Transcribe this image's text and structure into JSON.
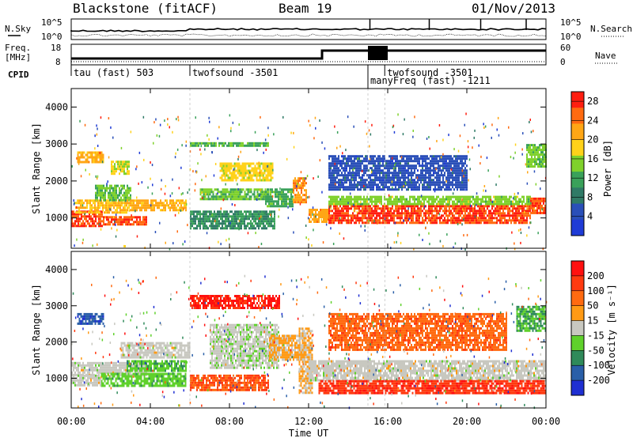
{
  "header": {
    "station": "Blackstone (fitACF)",
    "beam": "Beam 19",
    "date": "01/Nov/2013"
  },
  "summary_panels": {
    "nsky_label": "N.Sky",
    "nsearch_label": "N.Search",
    "nsky_ticks": [
      "10^5",
      "10^0"
    ],
    "freq_label_line1": "Freq.",
    "freq_label_line2": "[MHz]",
    "freq_ticks": [
      "18",
      "8"
    ],
    "nave_label": "Nave",
    "nave_ticks": [
      "60",
      "0"
    ],
    "cpid_label": "CPID",
    "cpid_segments": [
      {
        "label": "tau (fast) 503",
        "start": 0.0,
        "row": 0
      },
      {
        "label": "twofsound -3501",
        "start": 6.0,
        "row": 0
      },
      {
        "label": "manyFreq (fast) -1211",
        "start": 15.0,
        "row": 1
      },
      {
        "label": "twofsound -3501",
        "start": 15.85,
        "row": 0
      }
    ]
  },
  "chart_data": [
    {
      "type": "heatmap",
      "title": "",
      "xlabel": "",
      "ylabel": "Slant Range [km]",
      "xlim": [
        0,
        24
      ],
      "ylim": [
        180,
        4500
      ],
      "yticks": [
        1000,
        2000,
        3000,
        4000
      ],
      "colorbar": {
        "label": "Power [dB]",
        "ticks": [
          4,
          8,
          12,
          16,
          20,
          24,
          28
        ],
        "range": [
          0,
          30
        ],
        "colors": [
          "#1f3bd6",
          "#2a4fb8",
          "#2f7a66",
          "#3aa15a",
          "#7fd12b",
          "#ffd21a",
          "#ffa615",
          "#ff6a10",
          "#ff1e10"
        ]
      },
      "regions": [
        {
          "t0": 0.0,
          "t1": 1.6,
          "r0": 800,
          "r1": 1200,
          "level": 27
        },
        {
          "t0": 1.6,
          "t1": 3.8,
          "r0": 800,
          "r1": 1050,
          "level": 26
        },
        {
          "t0": 0.2,
          "t1": 2.8,
          "r0": 1150,
          "r1": 1500,
          "level": 20
        },
        {
          "t0": 1.2,
          "t1": 3.0,
          "r0": 1500,
          "r1": 1900,
          "level": 14
        },
        {
          "t0": 2.8,
          "t1": 5.8,
          "r0": 1200,
          "r1": 1500,
          "level": 21
        },
        {
          "t0": 0.3,
          "t1": 1.6,
          "r0": 2500,
          "r1": 2800,
          "level": 21
        },
        {
          "t0": 2.0,
          "t1": 2.9,
          "r0": 2200,
          "r1": 2550,
          "level": 17
        },
        {
          "t0": 6.0,
          "t1": 10.3,
          "r0": 700,
          "r1": 1200,
          "level": 10
        },
        {
          "t0": 6.5,
          "t1": 10.0,
          "r0": 1500,
          "r1": 1800,
          "level": 14
        },
        {
          "t0": 7.5,
          "t1": 10.2,
          "r0": 2000,
          "r1": 2500,
          "level": 18
        },
        {
          "t0": 6.0,
          "t1": 10.0,
          "r0": 2950,
          "r1": 3050,
          "level": 13
        },
        {
          "t0": 9.8,
          "t1": 11.2,
          "r0": 1300,
          "r1": 1800,
          "level": 12
        },
        {
          "t0": 11.2,
          "t1": 11.9,
          "r0": 1400,
          "r1": 2100,
          "level": 23
        },
        {
          "t0": 12.0,
          "t1": 13.0,
          "r0": 900,
          "r1": 1250,
          "level": 22
        },
        {
          "t0": 13.0,
          "t1": 23.2,
          "r0": 850,
          "r1": 1350,
          "level": 27
        },
        {
          "t0": 13.0,
          "t1": 23.2,
          "r0": 1350,
          "r1": 1600,
          "level": 15
        },
        {
          "t0": 23.2,
          "t1": 24.0,
          "r0": 1150,
          "r1": 1550,
          "level": 26
        },
        {
          "t0": 23.0,
          "t1": 24.0,
          "r0": 2400,
          "r1": 3000,
          "level": 14
        },
        {
          "t0": 13.0,
          "t1": 20.0,
          "r0": 1800,
          "r1": 2700,
          "level": 5
        }
      ]
    },
    {
      "type": "heatmap",
      "title": "",
      "xlabel": "Time UT",
      "ylabel": "Slant Range [km]",
      "xlim": [
        0,
        24
      ],
      "ylim": [
        180,
        4500
      ],
      "xticks": [
        "00:00",
        "04:00",
        "08:00",
        "12:00",
        "16:00",
        "20:00",
        "00:00"
      ],
      "yticks": [
        1000,
        2000,
        3000,
        4000
      ],
      "colorbar": {
        "label": "Velocity [m s⁻¹]",
        "ticks": [
          200,
          100,
          50,
          15,
          -15,
          -50,
          -100,
          -200
        ],
        "range": [
          -250,
          250
        ],
        "colors": [
          "#1f2fd2",
          "#2a5fa8",
          "#2f8a5a",
          "#5fd12b",
          "#c8c8c0",
          "#ff9a15",
          "#ff6a10",
          "#ff3a10",
          "#ff1010"
        ]
      },
      "regions": [
        {
          "t0": 0.0,
          "t1": 3.8,
          "r0": 1100,
          "r1": 1450,
          "level": 0
        },
        {
          "t0": 1.5,
          "t1": 5.8,
          "r0": 800,
          "r1": 1150,
          "level": -60
        },
        {
          "t0": 0.0,
          "t1": 1.5,
          "r0": 800,
          "r1": 1100,
          "level": 0
        },
        {
          "t0": 2.8,
          "t1": 5.8,
          "r0": 1200,
          "r1": 1500,
          "level": -70
        },
        {
          "t0": 0.3,
          "t1": 1.6,
          "r0": 2500,
          "r1": 2800,
          "level": -180
        },
        {
          "t0": 2.5,
          "t1": 6.0,
          "r0": 1550,
          "r1": 2000,
          "level": 0
        },
        {
          "t0": 6.0,
          "t1": 10.5,
          "r0": 2950,
          "r1": 3300,
          "level": 200
        },
        {
          "t0": 6.0,
          "t1": 10.0,
          "r0": 700,
          "r1": 1100,
          "level": 140
        },
        {
          "t0": 7.0,
          "t1": 10.5,
          "r0": 1300,
          "r1": 2500,
          "level": -10
        },
        {
          "t0": 10.0,
          "t1": 11.8,
          "r0": 1500,
          "r1": 2200,
          "level": 40
        },
        {
          "t0": 11.5,
          "t1": 12.2,
          "r0": 600,
          "r1": 2400,
          "level": 30
        },
        {
          "t0": 12.0,
          "t1": 24.0,
          "r0": 950,
          "r1": 1500,
          "level": 0
        },
        {
          "t0": 12.5,
          "t1": 24.0,
          "r0": 600,
          "r1": 950,
          "level": 180
        },
        {
          "t0": 22.5,
          "t1": 24.0,
          "r0": 2300,
          "r1": 3000,
          "level": -80
        },
        {
          "t0": 13.0,
          "t1": 22.0,
          "r0": 1800,
          "r1": 2800,
          "level": 120
        }
      ]
    }
  ]
}
